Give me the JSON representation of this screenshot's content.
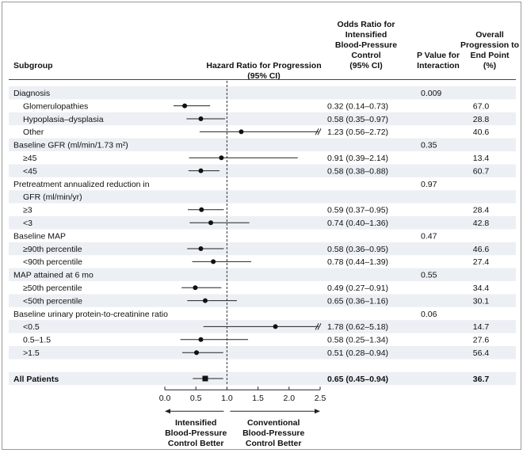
{
  "headers": {
    "subgroup": "Subgroup",
    "hazard": [
      "Hazard Ratio for Progression",
      "(95% CI)"
    ],
    "odds": [
      "Odds Ratio for",
      "Intensified",
      "Blood-Pressure",
      "Control",
      "(95% CI)"
    ],
    "pvalue": [
      "P Value for",
      "Interaction"
    ],
    "overall": [
      "Overall",
      "Progression to",
      "End Point",
      "(%)"
    ]
  },
  "chart_data": {
    "type": "forest",
    "xlim": [
      0.0,
      2.5
    ],
    "x_ticks": [
      "0.0",
      "0.5",
      "1.0",
      "1.5",
      "2.0",
      "2.5"
    ],
    "reference_line": 1.0,
    "xlabel_left": [
      "Intensified",
      "Blood-Pressure",
      "Control Better"
    ],
    "xlabel_right": [
      "Conventional",
      "Blood-Pressure",
      "Control Better"
    ],
    "rows": [
      {
        "label": "Diagnosis",
        "header": true,
        "p": "0.009"
      },
      {
        "label": "Glomerulopathies",
        "indent": true,
        "est": 0.32,
        "lo": 0.14,
        "hi": 0.73,
        "or": "0.32 (0.14–0.73)",
        "overall": "67.0"
      },
      {
        "label": "Hypoplasia–dysplasia",
        "indent": true,
        "est": 0.58,
        "lo": 0.35,
        "hi": 0.97,
        "or": "0.58 (0.35–0.97)",
        "overall": "28.8"
      },
      {
        "label": "Other",
        "indent": true,
        "est": 1.23,
        "lo": 0.56,
        "hi": 2.72,
        "clip": false,
        "or": "1.23 (0.56–2.72)",
        "overall": "40.6"
      },
      {
        "label": "Baseline GFR (ml/min/1.73 m²)",
        "header": true,
        "p": "0.35"
      },
      {
        "label": "≥45",
        "indent": true,
        "est": 0.91,
        "lo": 0.39,
        "hi": 2.14,
        "or": "0.91 (0.39–2.14)",
        "overall": "13.4"
      },
      {
        "label": "<45",
        "indent": true,
        "est": 0.58,
        "lo": 0.38,
        "hi": 0.88,
        "or": "0.58 (0.38–0.88)",
        "overall": "60.7"
      },
      {
        "label": "Pretreatment annualized reduction in",
        "header": true,
        "p": "0.97"
      },
      {
        "label": "GFR (ml/min/yr)",
        "header": true,
        "indent": true
      },
      {
        "label": "≥3",
        "indent": true,
        "est": 0.59,
        "lo": 0.37,
        "hi": 0.95,
        "or": "0.59 (0.37–0.95)",
        "overall": "28.4"
      },
      {
        "label": "<3",
        "indent": true,
        "est": 0.74,
        "lo": 0.4,
        "hi": 1.36,
        "or": "0.74 (0.40–1.36)",
        "overall": "42.8"
      },
      {
        "label": "Baseline MAP",
        "header": true,
        "p": "0.47"
      },
      {
        "label": "≥90th percentile",
        "indent": true,
        "est": 0.58,
        "lo": 0.36,
        "hi": 0.95,
        "or": "0.58 (0.36–0.95)",
        "overall": "46.6"
      },
      {
        "label": "<90th percentile",
        "indent": true,
        "est": 0.78,
        "lo": 0.44,
        "hi": 1.39,
        "or": "0.78 (0.44–1.39)",
        "overall": "27.4"
      },
      {
        "label": "MAP attained at 6 mo",
        "header": true,
        "p": "0.55"
      },
      {
        "label": "≥50th percentile",
        "indent": true,
        "est": 0.49,
        "lo": 0.27,
        "hi": 0.91,
        "or": "0.49 (0.27–0.91)",
        "overall": "34.4"
      },
      {
        "label": "<50th percentile",
        "indent": true,
        "est": 0.65,
        "lo": 0.36,
        "hi": 1.16,
        "or": "0.65 (0.36–1.16)",
        "overall": "30.1"
      },
      {
        "label": "Baseline urinary protein-to-creatinine ratio",
        "header": true,
        "p": "0.06"
      },
      {
        "label": "<0.5",
        "indent": true,
        "est": 1.78,
        "lo": 0.62,
        "hi": 5.18,
        "clip": true,
        "or": "1.78 (0.62–5.18)",
        "overall": "14.7"
      },
      {
        "label": "0.5–1.5",
        "indent": true,
        "est": 0.58,
        "lo": 0.25,
        "hi": 1.34,
        "or": "0.58 (0.25–1.34)",
        "overall": "27.6"
      },
      {
        "label": ">1.5",
        "indent": true,
        "est": 0.51,
        "lo": 0.28,
        "hi": 0.94,
        "or": "0.51 (0.28–0.94)",
        "overall": "56.4"
      },
      {
        "label": "",
        "spacer": true
      },
      {
        "label": "All Patients",
        "total": true,
        "est": 0.65,
        "lo": 0.45,
        "hi": 0.94,
        "or": "0.65 (0.45–0.94)",
        "overall": "36.7"
      }
    ]
  }
}
